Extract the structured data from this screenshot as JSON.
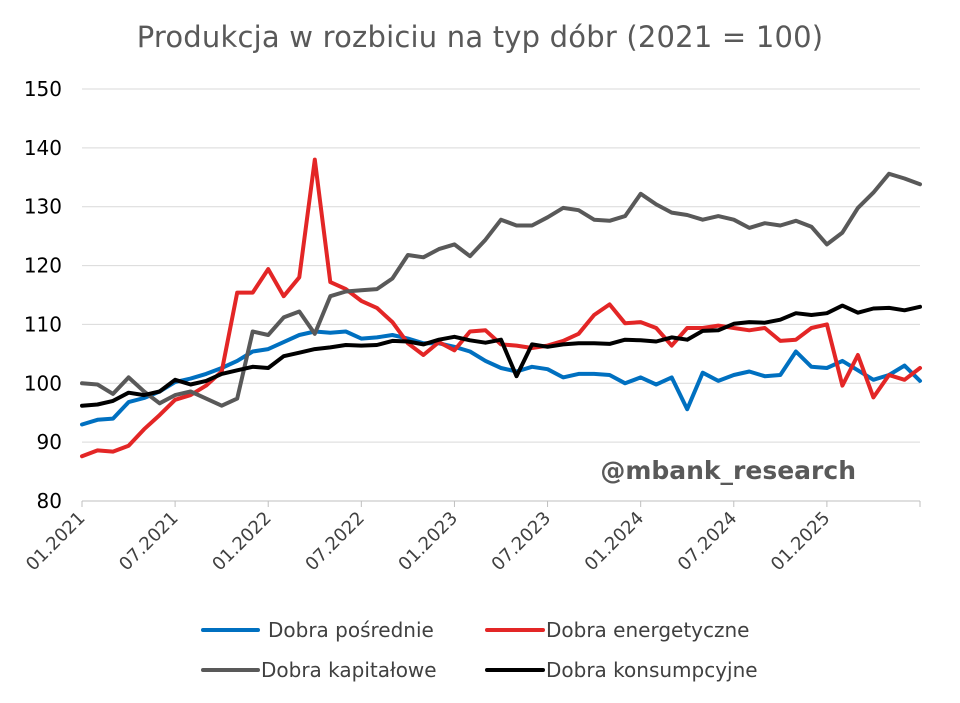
{
  "chart_data": {
    "type": "line",
    "title": "Produkcja w rozbiciu na typ dóbr (2021 = 100)",
    "xlabel": "",
    "ylabel": "",
    "ylim": [
      80,
      150
    ],
    "yticks": [
      80,
      90,
      100,
      110,
      120,
      130,
      140,
      150
    ],
    "grid": "horizontal",
    "legend_position": "bottom",
    "x": [
      "01.2021",
      "02.2021",
      "03.2021",
      "04.2021",
      "05.2021",
      "06.2021",
      "07.2021",
      "08.2021",
      "09.2021",
      "10.2021",
      "11.2021",
      "12.2021",
      "01.2022",
      "02.2022",
      "03.2022",
      "04.2022",
      "05.2022",
      "06.2022",
      "07.2022",
      "08.2022",
      "09.2022",
      "10.2022",
      "11.2022",
      "12.2022",
      "01.2023",
      "02.2023",
      "03.2023",
      "04.2023",
      "05.2023",
      "06.2023",
      "07.2023",
      "08.2023",
      "09.2023",
      "10.2023",
      "11.2023",
      "12.2023",
      "01.2024",
      "02.2024",
      "03.2024",
      "04.2024",
      "05.2024",
      "06.2024",
      "07.2024",
      "08.2024",
      "09.2024",
      "10.2024",
      "11.2024",
      "12.2024",
      "01.2025",
      "02.2025",
      "03.2025",
      "04.2025",
      "05.2025",
      "06.2025",
      "07.2025"
    ],
    "x_tick_labels": [
      "01.2021",
      "07.2021",
      "01.2022",
      "07.2022",
      "01.2023",
      "07.2023",
      "01.2024",
      "07.2024",
      "01.2025"
    ],
    "series": [
      {
        "name": "Dobra pośrednie",
        "color": "#0070C0",
        "values": [
          93,
          93.8,
          94,
          96.8,
          97.5,
          98.6,
          100.2,
          100.8,
          101.6,
          102.6,
          103.8,
          105.4,
          105.8,
          107,
          108.2,
          108.8,
          108.6,
          108.8,
          107.6,
          107.8,
          108.2,
          107.6,
          106.8,
          106.8,
          106.2,
          105.4,
          103.8,
          102.6,
          102,
          102.8,
          102.4,
          101,
          101.6,
          101.6,
          101.4,
          100,
          101,
          99.8,
          101,
          95.6,
          101.8,
          100.4,
          101.4,
          102,
          101.2,
          101.4,
          105.4,
          102.8,
          102.6,
          103.8,
          102.2,
          100.6,
          101.4,
          103,
          100.4
        ]
      },
      {
        "name": "Dobra energetyczne",
        "color": "#E32626",
        "values": [
          87.6,
          88.6,
          88.4,
          89.4,
          92.2,
          94.6,
          97.2,
          98,
          99.6,
          102,
          115.4,
          115.4,
          119.4,
          114.8,
          118,
          138,
          117.2,
          116,
          114,
          112.8,
          110.4,
          106.8,
          104.8,
          107,
          105.6,
          108.8,
          109,
          106.6,
          106.4,
          106,
          106.4,
          107.2,
          108.4,
          111.6,
          113.4,
          110.2,
          110.4,
          109.4,
          106.4,
          109.4,
          109.4,
          109.8,
          109.4,
          109,
          109.4,
          107.2,
          107.4,
          109.4,
          110,
          99.6,
          104.8,
          97.6,
          101.4,
          100.6,
          102.6
        ]
      },
      {
        "name": "Dobra kapitałowe",
        "color": "#595959",
        "values": [
          100,
          99.8,
          98.2,
          101,
          98.6,
          96.6,
          98,
          98.6,
          97.4,
          96.2,
          97.4,
          108.8,
          108.2,
          111.2,
          112.2,
          108.4,
          114.8,
          115.6,
          115.8,
          116,
          117.8,
          121.8,
          121.4,
          122.8,
          123.6,
          121.6,
          124.4,
          127.8,
          126.8,
          126.8,
          128.2,
          129.8,
          129.4,
          127.8,
          127.6,
          128.4,
          132.2,
          130.4,
          129,
          128.6,
          127.8,
          128.4,
          127.8,
          126.4,
          127.2,
          126.8,
          127.6,
          126.6,
          123.6,
          125.6,
          129.8,
          132.4,
          135.6,
          134.8,
          133.8
        ]
      },
      {
        "name": "Dobra konsumpcyjne",
        "color": "#000000",
        "values": [
          96.2,
          96.4,
          97,
          98.4,
          98,
          98.6,
          100.6,
          99.8,
          100.4,
          101.6,
          102.2,
          102.8,
          102.6,
          104.6,
          105.2,
          105.8,
          106.1,
          106.5,
          106.4,
          106.5,
          107.2,
          107.1,
          106.6,
          107.4,
          107.9,
          107.3,
          106.9,
          107.4,
          101.2,
          106.6,
          106.2,
          106.6,
          106.8,
          106.8,
          106.7,
          107.4,
          107.3,
          107.1,
          107.8,
          107.4,
          108.9,
          109,
          110.1,
          110.4,
          110.3,
          110.8,
          111.9,
          111.6,
          111.9,
          113.2,
          112,
          112.7,
          112.8,
          112.4,
          113
        ]
      }
    ]
  },
  "watermark": "@mbank_research",
  "legend": [
    {
      "label": "Dobra pośrednie",
      "color": "#0070C0"
    },
    {
      "label": "Dobra energetyczne",
      "color": "#E32626"
    },
    {
      "label": "Dobra kapitałowe",
      "color": "#595959"
    },
    {
      "label": "Dobra konsumpcyjne",
      "color": "#000000"
    }
  ]
}
